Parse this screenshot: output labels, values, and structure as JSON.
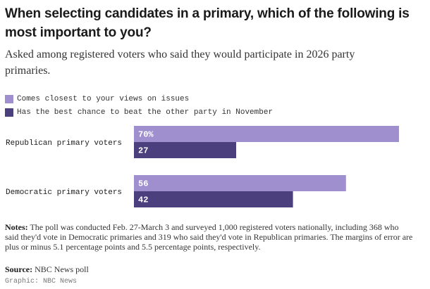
{
  "chart_data": {
    "type": "bar",
    "orientation": "horizontal",
    "title": "When selecting candidates in a primary, which of the following is most important to you?",
    "subtitle": "Asked among registered voters who said they would participate in 2026 party primaries.",
    "categories": [
      "Republican primary voters",
      "Democratic primary voters"
    ],
    "series": [
      {
        "name": "Comes closest to your views on issues",
        "color": "#a08fcf",
        "values": [
          70,
          56
        ],
        "labels": [
          "70%",
          "56"
        ]
      },
      {
        "name": "Has the best chance to beat the other party in November",
        "color": "#4c3f7d",
        "values": [
          27,
          42
        ],
        "labels": [
          "27",
          "42"
        ]
      }
    ],
    "xlim": [
      0,
      70
    ],
    "xlabel": "",
    "ylabel": "",
    "legend_position": "top-left"
  },
  "notes": {
    "label": "Notes:",
    "text": "The poll was conducted Feb. 27-March 3 and surveyed 1,000 registered voters nationally, including 368 who said they'd vote in Democratic primaries and 319 who said they'd vote in Republican primaries. The margins of error are plus or minus 5.1 percentage points and 5.5 percentage points, respectively."
  },
  "source": {
    "label": "Source:",
    "text": "NBC News poll"
  },
  "credit": "Graphic: NBC News"
}
